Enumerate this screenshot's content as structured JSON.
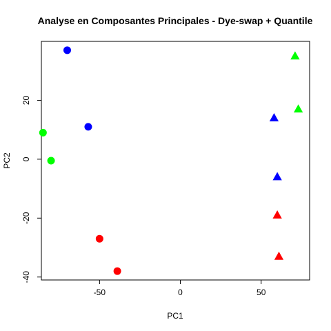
{
  "chart_data": {
    "type": "scatter",
    "title": "Analyse en Composantes Principales - Dye-swap + Quantile",
    "xlabel": "PC1",
    "ylabel": "PC2",
    "xlim": [
      -86,
      80
    ],
    "ylim": [
      -41,
      40
    ],
    "x_ticks": [
      -50,
      0,
      50
    ],
    "y_ticks": [
      -40,
      -20,
      0,
      20
    ],
    "grid": false,
    "points": [
      {
        "x": -70,
        "y": 37,
        "shape": "circle",
        "color": "#0000ff"
      },
      {
        "x": -57,
        "y": 11,
        "shape": "circle",
        "color": "#0000ff"
      },
      {
        "x": -85,
        "y": 9,
        "shape": "circle",
        "color": "#00ff00"
      },
      {
        "x": -80,
        "y": -0.5,
        "shape": "circle",
        "color": "#00ff00"
      },
      {
        "x": -50,
        "y": -27,
        "shape": "circle",
        "color": "#ff0000"
      },
      {
        "x": -39,
        "y": -38,
        "shape": "circle",
        "color": "#ff0000"
      },
      {
        "x": 71,
        "y": 35,
        "shape": "triangle",
        "color": "#00ff00"
      },
      {
        "x": 73,
        "y": 17,
        "shape": "triangle",
        "color": "#00ff00"
      },
      {
        "x": 58,
        "y": 14,
        "shape": "triangle",
        "color": "#0000ff"
      },
      {
        "x": 60,
        "y": -6,
        "shape": "triangle",
        "color": "#0000ff"
      },
      {
        "x": 60,
        "y": -19,
        "shape": "triangle",
        "color": "#ff0000"
      },
      {
        "x": 61,
        "y": -33,
        "shape": "triangle",
        "color": "#ff0000"
      }
    ]
  }
}
